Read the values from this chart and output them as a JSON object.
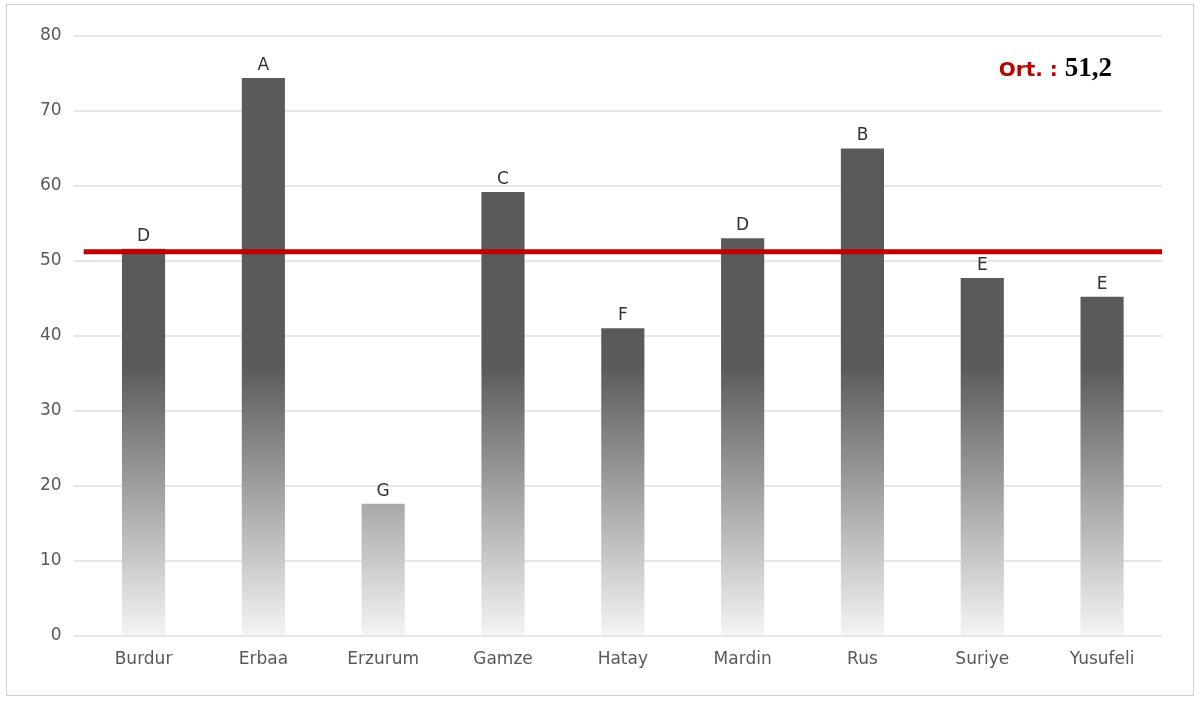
{
  "chart_data": {
    "type": "bar",
    "categories": [
      "Burdur",
      "Erbaa",
      "Erzurum",
      "Gamze",
      "Hatay",
      "Mardin",
      "Rus",
      "Suriye",
      "Yusufeli"
    ],
    "values": [
      51.6,
      74.4,
      17.6,
      59.2,
      41.0,
      53.0,
      65.0,
      47.7,
      45.2
    ],
    "value_labels": [
      "D",
      "A",
      "G",
      "C",
      "F",
      "D",
      "B",
      "E",
      "E"
    ],
    "color": "#5a5a5a",
    "ylim": [
      0,
      80
    ],
    "yticks": [
      0,
      10,
      20,
      30,
      40,
      50,
      60,
      70,
      80
    ],
    "grid": "y",
    "legend": false,
    "ref_lines": [
      {
        "axis": "y",
        "value": 51.2,
        "label": "Ort. : 51,2",
        "color": "#c00000"
      }
    ]
  }
}
